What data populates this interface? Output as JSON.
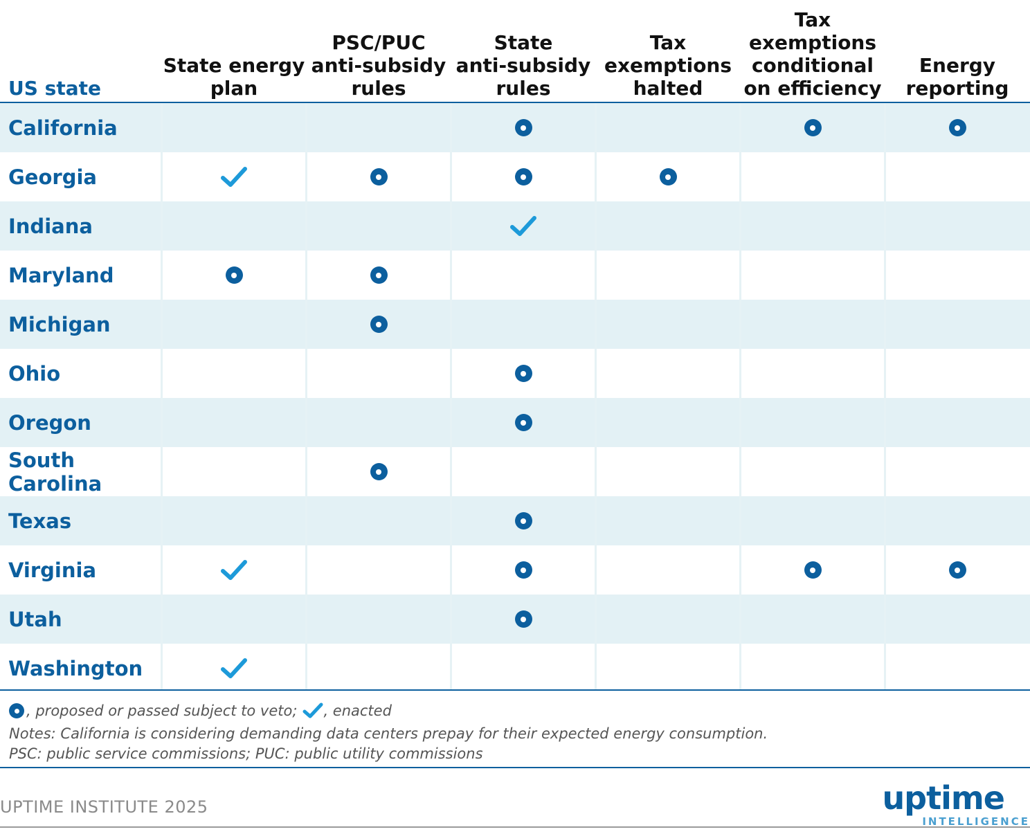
{
  "table": {
    "headers": [
      "US state",
      "State energy\nplan",
      "PSC/PUC\nanti-subsidy\nrules",
      "State\nanti-subsidy\nrules",
      "Tax\nexemptions\nhalted",
      "Tax\nexemptions\nconditional\non efficiency",
      "Energy\nreporting"
    ],
    "rows": [
      {
        "state": "California",
        "marks": [
          "",
          "",
          "proposed",
          "",
          "proposed",
          "proposed"
        ]
      },
      {
        "state": "Georgia",
        "marks": [
          "enacted",
          "proposed",
          "proposed",
          "proposed",
          "",
          ""
        ]
      },
      {
        "state": "Indiana",
        "marks": [
          "",
          "",
          "enacted",
          "",
          "",
          ""
        ]
      },
      {
        "state": "Maryland",
        "marks": [
          "proposed",
          "proposed",
          "",
          "",
          "",
          ""
        ]
      },
      {
        "state": "Michigan",
        "marks": [
          "",
          "proposed",
          "",
          "",
          "",
          ""
        ]
      },
      {
        "state": "Ohio",
        "marks": [
          "",
          "",
          "proposed",
          "",
          "",
          ""
        ]
      },
      {
        "state": "Oregon",
        "marks": [
          "",
          "",
          "proposed",
          "",
          "",
          ""
        ]
      },
      {
        "state": "South Carolina",
        "marks": [
          "",
          "proposed",
          "",
          "",
          "",
          ""
        ]
      },
      {
        "state": "Texas",
        "marks": [
          "",
          "",
          "proposed",
          "",
          "",
          ""
        ]
      },
      {
        "state": "Virginia",
        "marks": [
          "enacted",
          "",
          "proposed",
          "",
          "proposed",
          "proposed"
        ]
      },
      {
        "state": "Utah",
        "marks": [
          "",
          "",
          "proposed",
          "",
          "",
          ""
        ]
      },
      {
        "state": "Washington",
        "marks": [
          "enacted",
          "",
          "",
          "",
          "",
          ""
        ]
      }
    ]
  },
  "legend": {
    "proposed_label": ", proposed or passed subject to veto;",
    "enacted_label": ", enacted"
  },
  "notes": [
    "Notes: California is considering demanding data centers prepay for their expected energy consumption.",
    "PSC: public service commissions; PUC: public utility commissions"
  ],
  "source": "UPTIME INSTITUTE 2025",
  "logo": {
    "word": "uptime",
    "sub": "INTELLIGENCE"
  },
  "colors": {
    "brand": "#0c5f9e",
    "check": "#1d9ad9",
    "shade": "#e3f1f5"
  }
}
